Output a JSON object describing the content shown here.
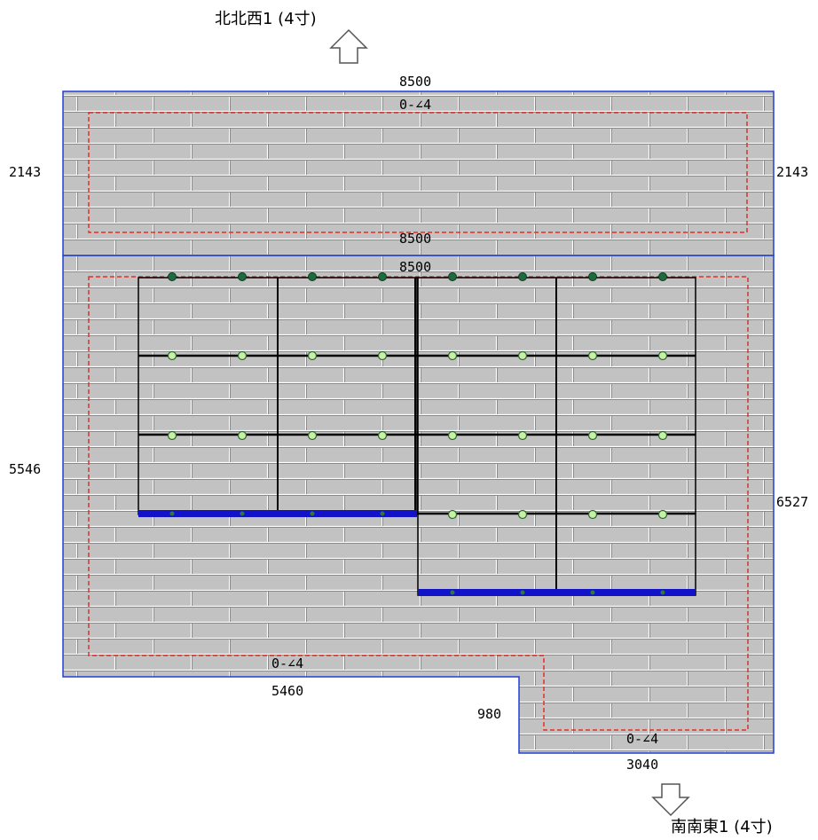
{
  "directions": {
    "top": "北北西1 (4寸)",
    "bottom": "南南東1 (4寸)"
  },
  "upper_section": {
    "top_width": "8500",
    "slope": "0-∠4",
    "left_height": "2143",
    "right_height": "2143",
    "bottom_width": "8500"
  },
  "lower_section": {
    "top_width": "8500",
    "left_height": "5546",
    "right_height": "6527",
    "bottom_left_slope": "0-∠4",
    "bottom_left_width": "5460",
    "step_height": "980",
    "bottom_right_slope": "0-∠4",
    "bottom_right_width": "3040"
  },
  "colors": {
    "roof_fill": "#c0c0c0",
    "roof_outline": "#1f3fd8",
    "margin_line": "#e0302a",
    "panel_frame": "#000000",
    "rail_bar": "#1212c8",
    "bolt_dark": "#1f6b3e",
    "bolt_light": "#c9f0a8"
  }
}
